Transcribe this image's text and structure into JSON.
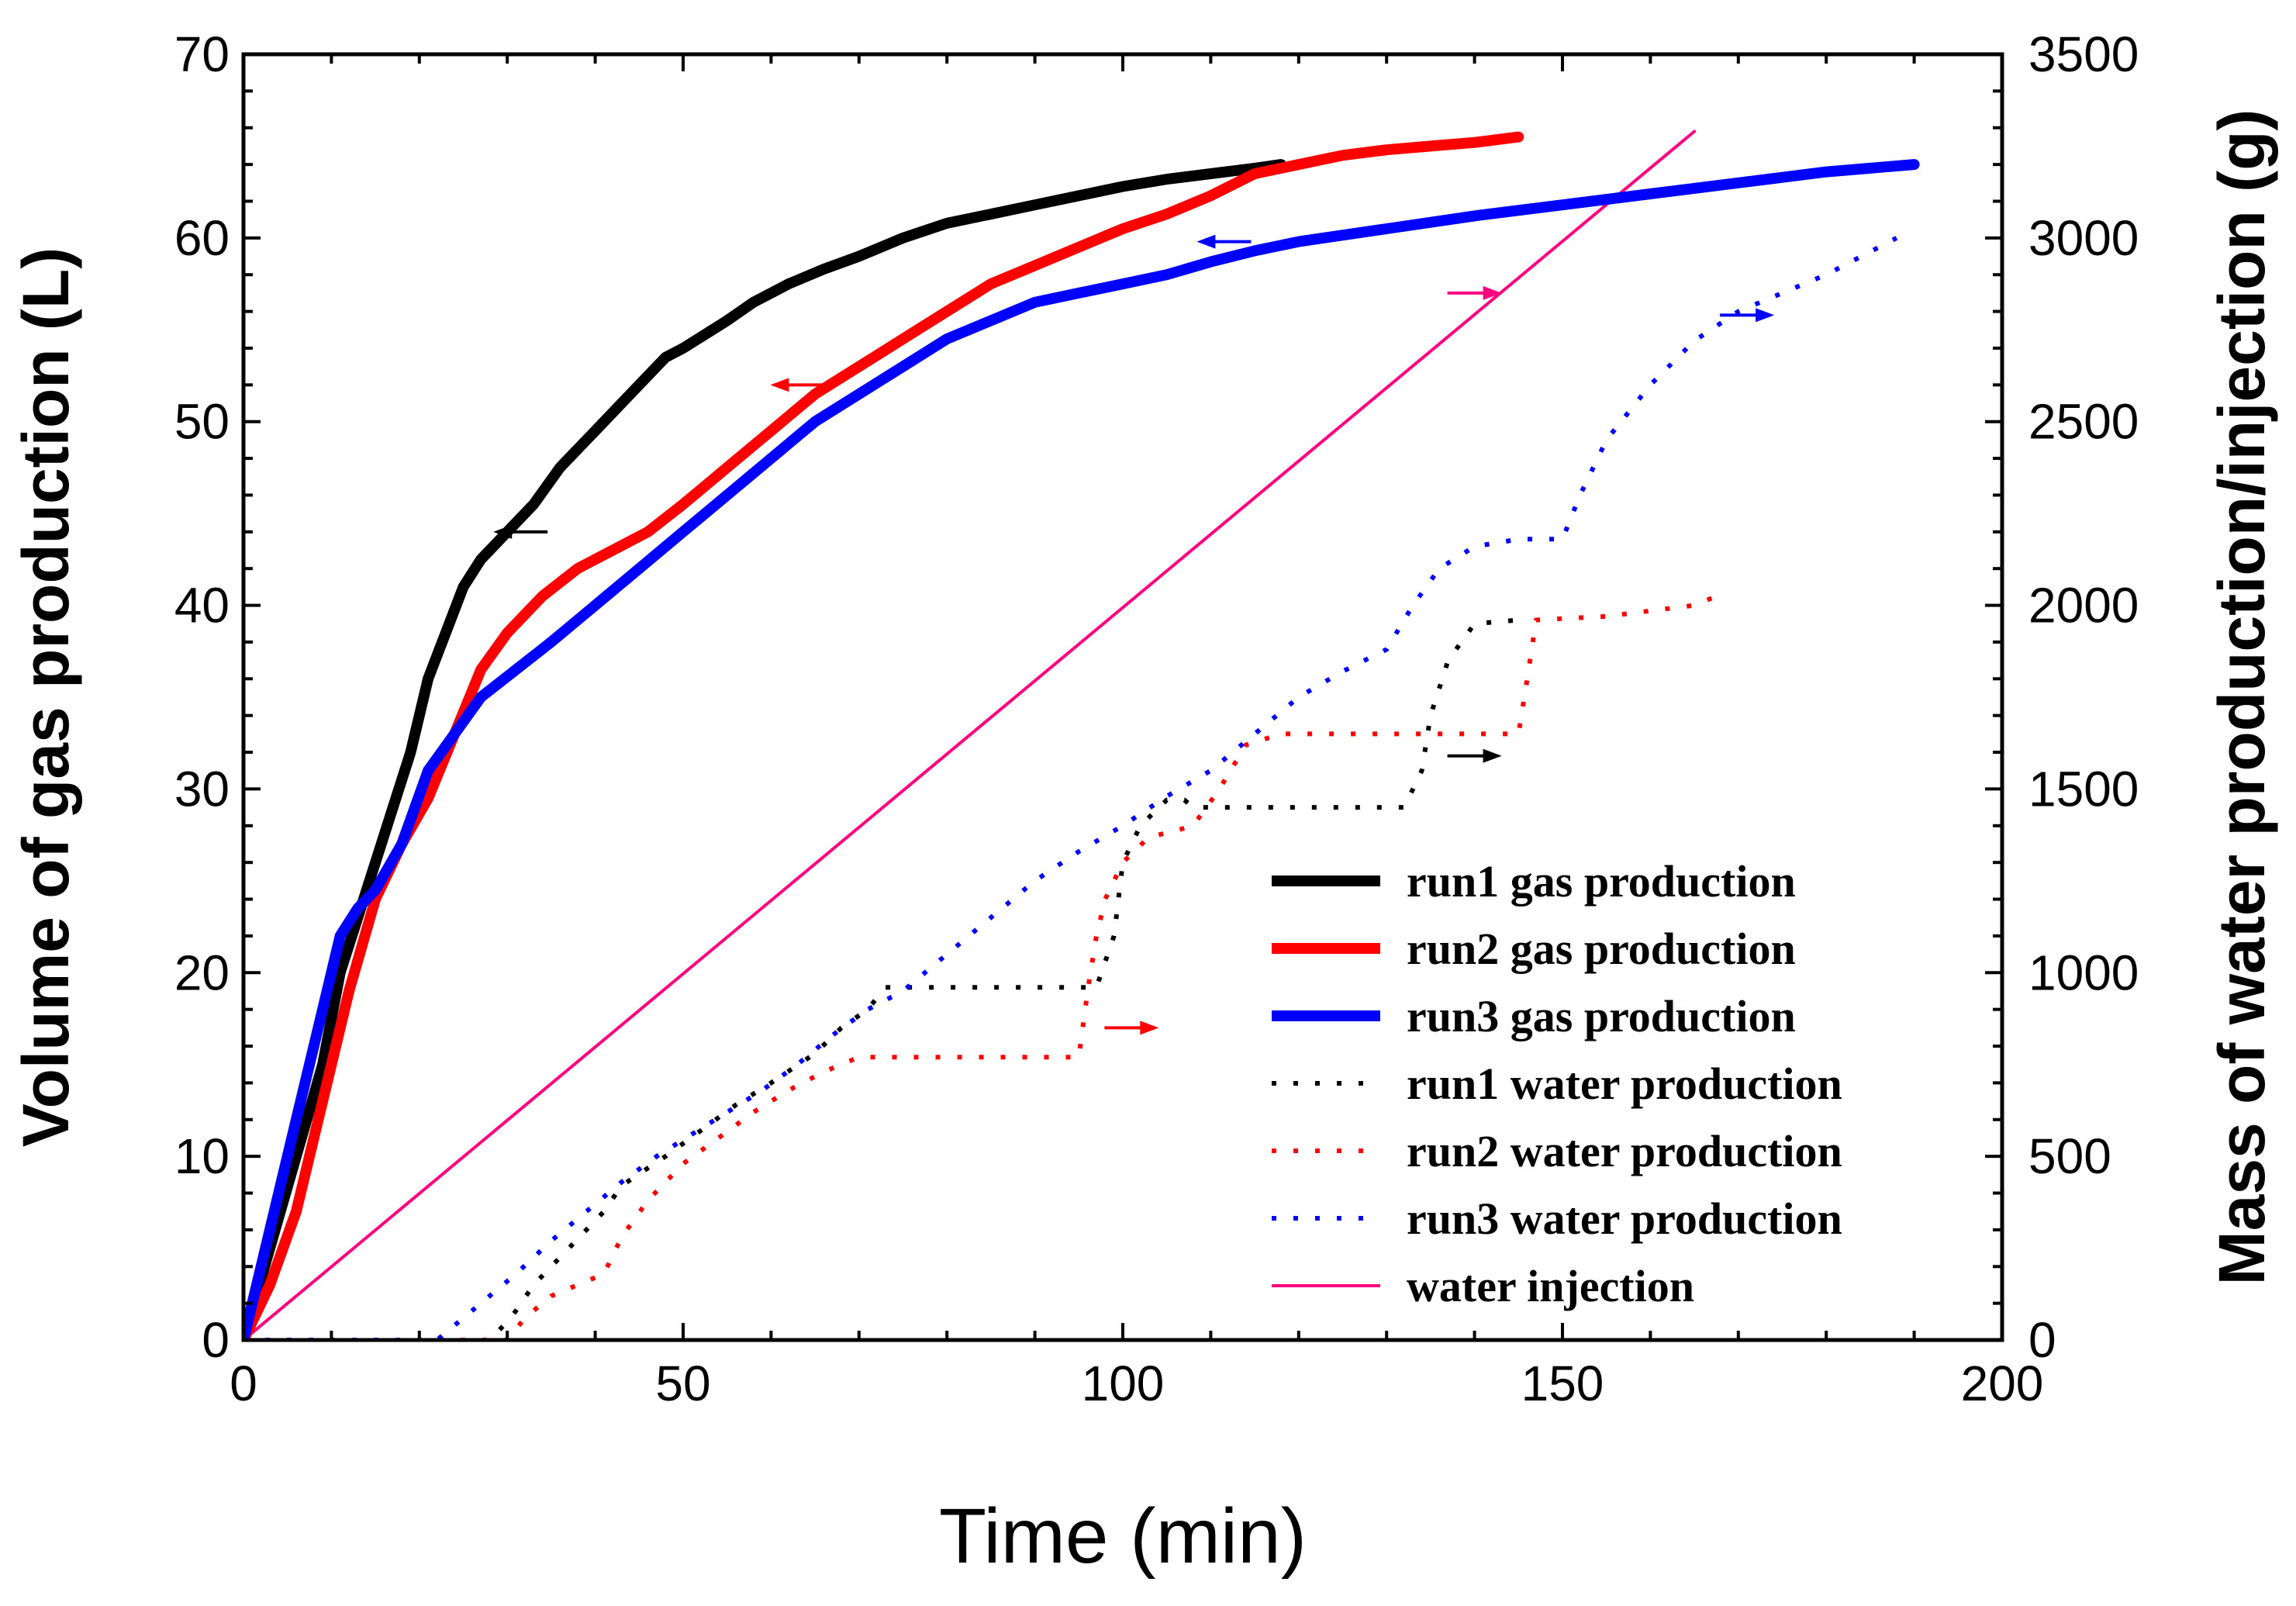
{
  "chart_data": {
    "type": "line",
    "xlabel": "Time (min)",
    "ylabel_left": "Volume of gas production (L)",
    "ylabel_right": "Mass of water production/injection (g)",
    "xlim": [
      0,
      200
    ],
    "ylim_left": [
      0,
      70
    ],
    "ylim_right": [
      0,
      3500
    ],
    "x_ticks": [
      0,
      50,
      100,
      150,
      200
    ],
    "y_ticks_left": [
      0,
      10,
      20,
      30,
      40,
      50,
      60,
      70
    ],
    "y_ticks_right": [
      0,
      500,
      1000,
      1500,
      2000,
      2500,
      3000,
      3500
    ],
    "legend_position": "bottom-right",
    "series": [
      {
        "name": "run1 gas production",
        "axis": "left",
        "style": "solid-thick",
        "color": "#000000",
        "x": [
          0,
          3,
          6,
          9,
          11,
          13,
          15,
          17,
          19,
          21,
          23,
          25,
          27,
          29,
          31,
          33,
          36,
          40,
          43,
          46,
          48,
          50,
          55,
          58,
          62,
          66,
          70,
          75,
          80,
          85,
          90,
          95,
          100,
          105,
          110,
          115,
          118
        ],
        "y": [
          0,
          5,
          10,
          15,
          20,
          23,
          26,
          29,
          32,
          36,
          38.5,
          41,
          42.5,
          43.5,
          44.5,
          45.5,
          47.5,
          49.5,
          51,
          52.5,
          53.5,
          54,
          55.5,
          56.5,
          57.5,
          58.3,
          59,
          60,
          60.8,
          61.3,
          61.8,
          62.3,
          62.8,
          63.2,
          63.5,
          63.8,
          64
        ]
      },
      {
        "name": "run2 gas production",
        "axis": "left",
        "style": "solid-thick",
        "color": "#ff0000",
        "x": [
          0,
          3,
          6,
          9,
          12,
          15,
          18,
          21,
          24,
          27,
          30,
          34,
          38,
          42,
          46,
          50,
          55,
          60,
          65,
          70,
          75,
          80,
          85,
          90,
          95,
          100,
          105,
          110,
          115,
          120,
          125,
          130,
          135,
          140,
          145
        ],
        "y": [
          0,
          3,
          7,
          13,
          19,
          24,
          27,
          29.5,
          33,
          36.5,
          38.5,
          40.5,
          42,
          43,
          44,
          45.5,
          47.5,
          49.5,
          51.5,
          53,
          54.5,
          56,
          57.5,
          58.5,
          59.5,
          60.5,
          61.3,
          62.3,
          63.5,
          64,
          64.5,
          64.8,
          65,
          65.2,
          65.5
        ]
      },
      {
        "name": "run3 gas production",
        "axis": "left",
        "style": "solid-thick",
        "color": "#0000ff",
        "x": [
          0,
          3,
          6,
          9,
          11,
          13,
          15,
          18,
          21,
          24,
          27,
          31,
          35,
          40,
          45,
          50,
          55,
          60,
          65,
          70,
          75,
          80,
          85,
          90,
          95,
          100,
          105,
          110,
          115,
          120,
          130,
          140,
          150,
          160,
          170,
          180,
          190
        ],
        "y": [
          0,
          6,
          12,
          18,
          22,
          23.5,
          24.5,
          27,
          31,
          33,
          35,
          36.5,
          38,
          40,
          42,
          44,
          46,
          48,
          50,
          51.5,
          53,
          54.5,
          55.5,
          56.5,
          57,
          57.5,
          58,
          58.7,
          59.3,
          59.8,
          60.5,
          61.2,
          61.8,
          62.4,
          63,
          63.6,
          64
        ]
      },
      {
        "name": "run1 water production",
        "axis": "right",
        "style": "dotted",
        "color": "#000000",
        "x": [
          0,
          28,
          30,
          31,
          33,
          37,
          41,
          43,
          48,
          52,
          56,
          60,
          65,
          68,
          71,
          73,
          80,
          90,
          97,
          99,
          100,
          102,
          105,
          107,
          108,
          115,
          125,
          132,
          134,
          135,
          137,
          140,
          145
        ],
        "y": [
          0,
          0,
          50,
          80,
          150,
          250,
          350,
          420,
          500,
          570,
          640,
          700,
          780,
          850,
          900,
          960,
          960,
          960,
          960,
          1100,
          1300,
          1400,
          1470,
          1470,
          1450,
          1450,
          1450,
          1450,
          1550,
          1700,
          1850,
          1950,
          1960
        ]
      },
      {
        "name": "run2 water production",
        "axis": "right",
        "style": "dotted",
        "color": "#ff0000",
        "x": [
          0,
          30,
          32,
          35,
          38,
          41,
          43,
          46,
          50,
          54,
          58,
          62,
          66,
          70,
          75,
          85,
          95,
          96,
          97,
          98,
          100,
          103,
          105,
          108,
          111,
          114,
          118,
          125,
          135,
          145,
          146,
          147,
          155,
          165,
          168
        ],
        "y": [
          0,
          0,
          60,
          120,
          150,
          180,
          280,
          380,
          480,
          550,
          620,
          680,
          730,
          770,
          770,
          770,
          770,
          950,
          1100,
          1200,
          1300,
          1370,
          1380,
          1400,
          1500,
          1620,
          1650,
          1650,
          1650,
          1650,
          1800,
          1960,
          1970,
          2000,
          2030
        ]
      },
      {
        "name": "run3 water production",
        "axis": "right",
        "style": "dotted",
        "color": "#0000ff",
        "x": [
          0,
          22,
          24,
          27,
          31,
          35,
          39,
          43,
          47,
          51,
          55,
          59,
          63,
          67,
          71,
          75,
          80,
          85,
          90,
          95,
          100,
          105,
          110,
          115,
          120,
          125,
          130,
          133,
          136,
          140,
          145,
          150,
          152,
          155,
          160,
          165,
          170,
          180,
          188
        ],
        "y": [
          0,
          0,
          40,
          100,
          180,
          270,
          350,
          430,
          500,
          560,
          620,
          680,
          750,
          830,
          900,
          950,
          1050,
          1150,
          1250,
          1330,
          1400,
          1480,
          1550,
          1650,
          1750,
          1820,
          1880,
          2000,
          2100,
          2160,
          2180,
          2180,
          2300,
          2450,
          2600,
          2720,
          2800,
          2900,
          3000
        ]
      },
      {
        "name": "water injection",
        "axis": "right",
        "style": "solid-thin",
        "color": "#ff0080",
        "x": [
          0,
          165
        ],
        "y": [
          0,
          3290
        ]
      }
    ],
    "annotations": [
      {
        "label": "run1 gas arrow (points to left axis)",
        "color": "#000000",
        "x": 31.5,
        "y_left": 44,
        "direction": "left"
      },
      {
        "label": "run2 gas arrow (points to left axis)",
        "color": "#ff0000",
        "x": 63,
        "y_left": 52,
        "direction": "left"
      },
      {
        "label": "run3 gas arrow (points to left axis)",
        "color": "#0000ff",
        "x": 111.5,
        "y_left": 59.8,
        "direction": "left"
      },
      {
        "label": "water injection arrow (points to right axis)",
        "color": "#ff0080",
        "x": 140,
        "y_right": 2850,
        "direction": "right"
      },
      {
        "label": "run3 water arrow (points to right axis)",
        "color": "#0000ff",
        "x": 171,
        "y_right": 2790,
        "direction": "right"
      },
      {
        "label": "run1 water arrow (points to right axis)",
        "color": "#000000",
        "x": 140,
        "y_right": 1590,
        "direction": "right"
      },
      {
        "label": "run2 water arrow (points to right axis)",
        "color": "#ff0000",
        "x": 101,
        "y_right": 850,
        "direction": "right"
      }
    ]
  }
}
